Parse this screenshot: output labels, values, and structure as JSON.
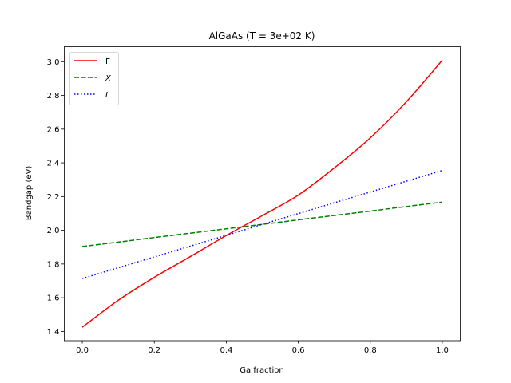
{
  "chart_data": {
    "type": "line",
    "title": "AlGaAs (T = 3e+02 K)",
    "xlabel": "Ga fraction",
    "ylabel": "Bandgap (eV)",
    "xlim": [
      -0.05,
      1.05
    ],
    "ylim": [
      1.345,
      3.089
    ],
    "xticks": [
      "0.0",
      "0.2",
      "0.4",
      "0.6",
      "0.8",
      "1.0"
    ],
    "yticks": [
      "1.4",
      "1.6",
      "1.8",
      "2.0",
      "2.2",
      "2.4",
      "2.6",
      "2.8",
      "3.0"
    ],
    "grid": false,
    "legend_position": "top-left",
    "x": [
      0,
      0.1,
      0.2,
      0.3,
      0.4,
      0.5,
      0.6,
      0.7,
      0.8,
      0.9,
      1.0
    ],
    "series": [
      {
        "name": "Γ",
        "color": "#ff0000",
        "style": "solid",
        "values": [
          1.425,
          1.585,
          1.721,
          1.844,
          1.969,
          2.087,
          2.209,
          2.37,
          2.548,
          2.762,
          3.009
        ]
      },
      {
        "name": "X",
        "color": "#008000",
        "style": "dashed",
        "values": [
          1.904,
          1.93,
          1.957,
          1.983,
          2.009,
          2.035,
          2.062,
          2.088,
          2.114,
          2.141,
          2.167
        ]
      },
      {
        "name": "L",
        "color": "#0000ff",
        "style": "dotted",
        "values": [
          1.714,
          1.778,
          1.842,
          1.906,
          1.97,
          2.035,
          2.099,
          2.163,
          2.227,
          2.291,
          2.355
        ]
      }
    ]
  }
}
